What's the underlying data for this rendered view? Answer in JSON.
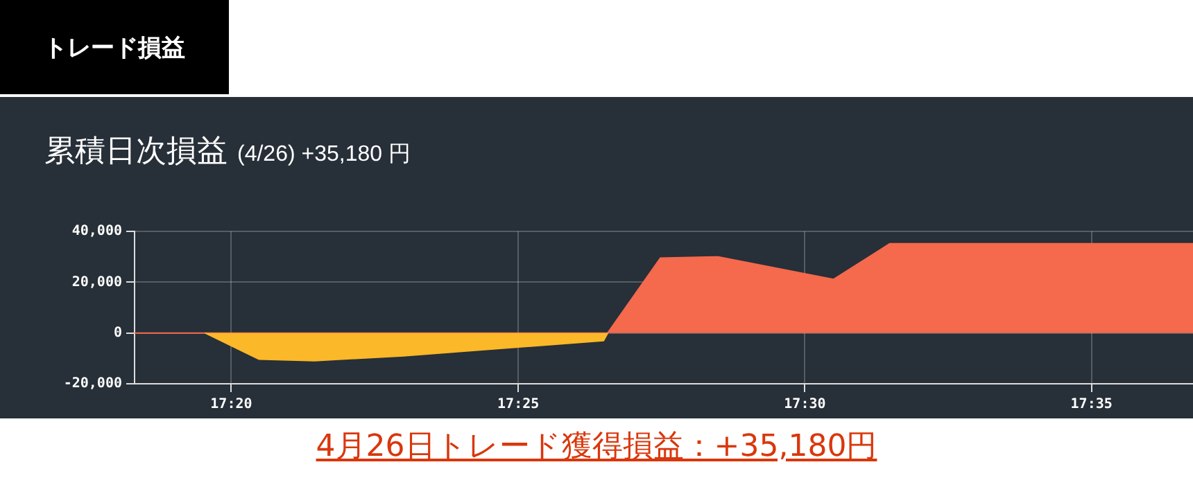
{
  "chart_data": {
    "type": "area",
    "title": "累積日次損益",
    "subtitle": "(4/26) +35,180 円",
    "annotations": [
      "トレード損益",
      "4月26日トレード獲得損益：+35,180円"
    ],
    "series": [
      {
        "color": "#fbb829",
        "x": [
          17.3257,
          17.3413,
          17.3575,
          17.3833,
          17.4415,
          17.4427
        ],
        "values": [
          0,
          -10300,
          -10900,
          -9000,
          -3000,
          0
        ]
      },
      {
        "color": "#f5694d",
        "x": [
          17.3052,
          17.4427,
          17.458,
          17.4748,
          17.5083,
          17.5247,
          17.6128
        ],
        "values": [
          0,
          0,
          29500,
          30000,
          21100,
          35180,
          35180
        ]
      }
    ],
    "xlim": [
      17.3052,
      17.6128
    ],
    "xticks": [
      {
        "value": 17.3333,
        "label": "17:20"
      },
      {
        "value": 17.4167,
        "label": "17:25"
      },
      {
        "value": 17.5,
        "label": "17:30"
      },
      {
        "value": 17.5833,
        "label": "17:35"
      }
    ],
    "ylim": [
      -20000,
      40000
    ],
    "yticks": [
      {
        "value": -20000,
        "label": "-20,000"
      },
      {
        "value": 0,
        "label": "0"
      },
      {
        "value": 20000,
        "label": "20,000"
      },
      {
        "value": 40000,
        "label": "40,000"
      }
    ],
    "grid": true,
    "legend": false
  }
}
